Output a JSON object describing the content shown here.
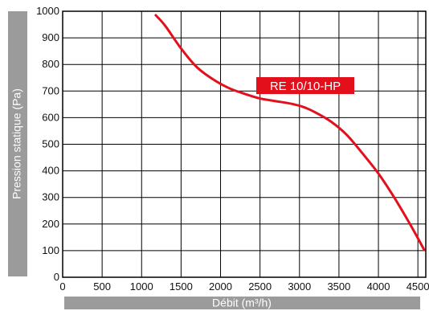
{
  "colors": {
    "curve": "#e3101c",
    "axis_band": "#9b9b9b",
    "grid": "#000000",
    "label_bg": "#e3101c",
    "label_text": "#ffffff"
  },
  "chart_data": {
    "type": "line",
    "title": "",
    "xlabel": "Débit (m³/h)",
    "ylabel": "Pression statique (Pa)",
    "xlim": [
      0,
      4600
    ],
    "ylim": [
      0,
      1000
    ],
    "x_ticks": [
      0,
      500,
      1000,
      1500,
      2000,
      2500,
      3000,
      3500,
      4000,
      4500
    ],
    "y_ticks": [
      0,
      100,
      200,
      300,
      400,
      500,
      600,
      700,
      800,
      900,
      1000
    ],
    "x_tick_labels": [
      "0",
      "500",
      "1000",
      "1500",
      "2000",
      "2500",
      "3000",
      "3500",
      "4000",
      "4500"
    ],
    "y_tick_labels": [
      "0",
      "100",
      "200",
      "300",
      "400",
      "500",
      "600",
      "700",
      "800",
      "900",
      "1000"
    ],
    "grid": true,
    "series": [
      {
        "name": "RE 10/10-HP",
        "x": [
          1180,
          1300,
          1500,
          1700,
          1900,
          2100,
          2300,
          2500,
          2700,
          2900,
          3050,
          3200,
          3400,
          3600,
          3800,
          4000,
          4200,
          4400,
          4580
        ],
        "y": [
          985,
          945,
          860,
          790,
          745,
          712,
          690,
          672,
          662,
          652,
          640,
          620,
          585,
          535,
          465,
          390,
          300,
          200,
          103
        ]
      }
    ]
  }
}
